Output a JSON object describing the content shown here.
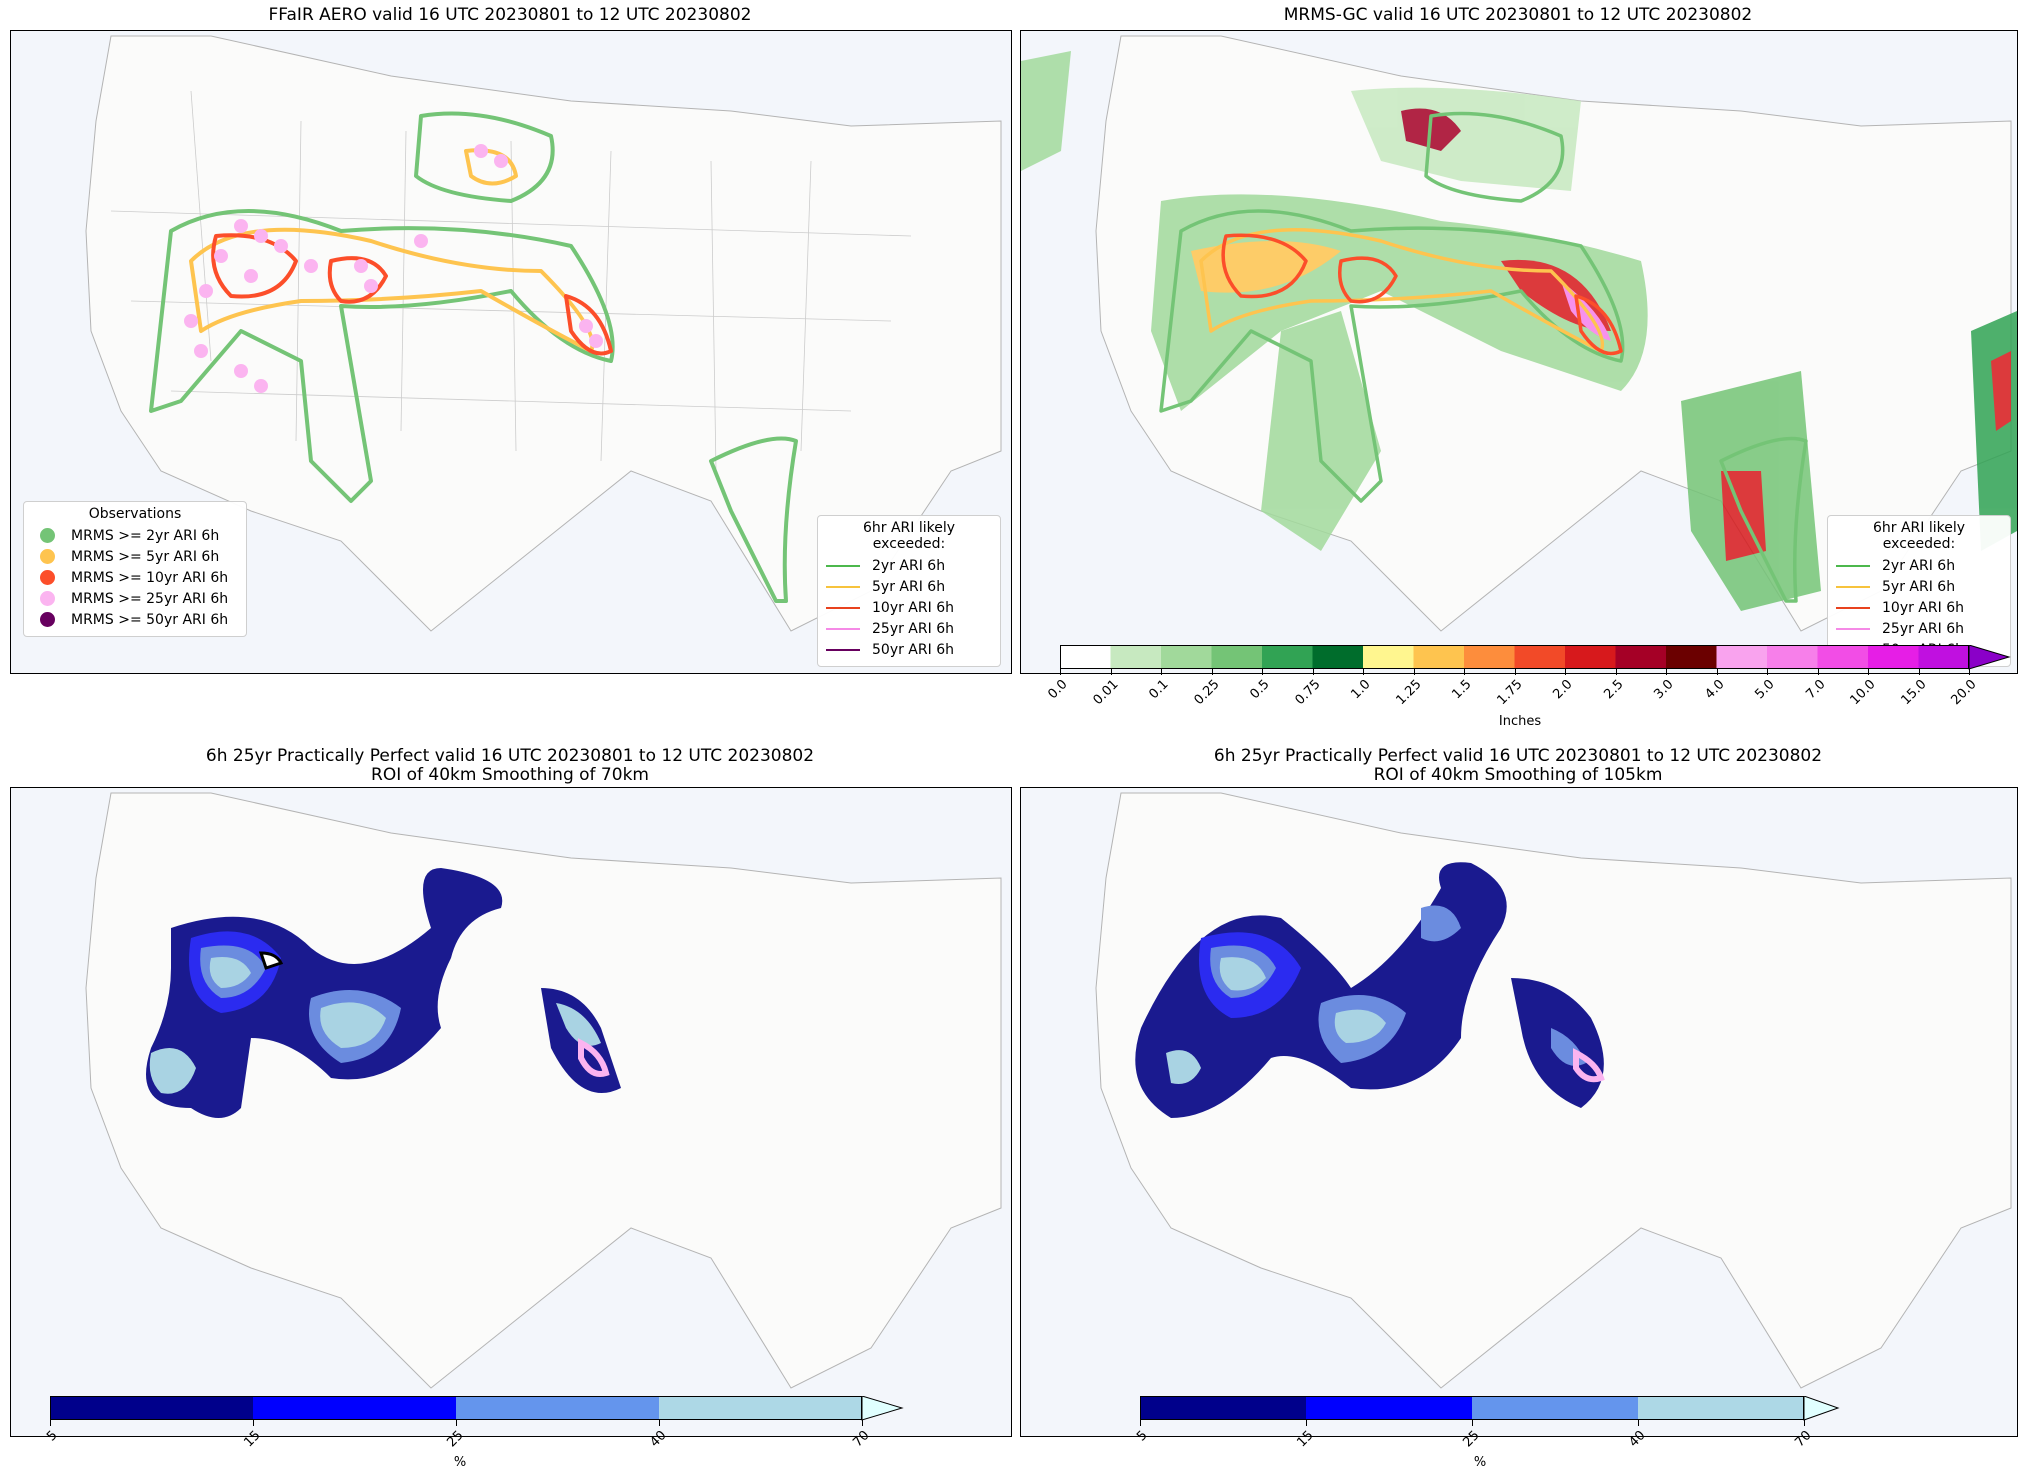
{
  "panels": [
    {
      "title_line1": "FFaIR AERO valid 16 UTC 20230801 to 12 UTC 20230802",
      "title_line2": ""
    },
    {
      "title_line1": "MRMS-GC valid 16 UTC 20230801 to 12 UTC 20230802",
      "title_line2": ""
    },
    {
      "title_line1": "6h 25yr Practically Perfect valid 16 UTC 20230801 to 12 UTC 20230802",
      "title_line2": "ROI of 40km Smoothing of 70km"
    },
    {
      "title_line1": "6h 25yr Practically Perfect valid 16 UTC 20230801 to 12 UTC 20230802",
      "title_line2": "ROI of 40km Smoothing of 105km"
    }
  ],
  "legend_observations": {
    "title": "Observations",
    "items": [
      {
        "label": "MRMS >= 2yr ARI 6h",
        "color": "#74c476"
      },
      {
        "label": "MRMS >= 5yr ARI 6h",
        "color": "#fec44f"
      },
      {
        "label": "MRMS >= 10yr ARI 6h",
        "color": "#fc4e2a"
      },
      {
        "label": "MRMS >= 25yr ARI 6h",
        "color": "#fbb4f0"
      },
      {
        "label": "MRMS >= 50yr ARI 6h",
        "color": "#67005f"
      }
    ]
  },
  "legend_ari": {
    "title": "6hr ARI likely exceeded:",
    "items": [
      {
        "label": "2yr ARI 6h",
        "color": "#4cb84c"
      },
      {
        "label": "5yr ARI 6h",
        "color": "#f7c33c"
      },
      {
        "label": "10yr ARI 6h",
        "color": "#e8421e"
      },
      {
        "label": "25yr ARI 6h",
        "color": "#f58ae6"
      },
      {
        "label": "50yr ARI 6h",
        "color": "#67005f"
      }
    ]
  },
  "precip_colorbar": {
    "label": "Inches",
    "ticks": [
      "0.0",
      "0.01",
      "0.1",
      "0.25",
      "0.5",
      "0.75",
      "1.0",
      "1.25",
      "1.5",
      "1.75",
      "2.0",
      "2.5",
      "3.0",
      "4.0",
      "5.0",
      "7.0",
      "10.0",
      "15.0",
      "20.0"
    ],
    "colors": [
      "#ffffff",
      "#c7e9c0",
      "#a1d99b",
      "#74c476",
      "#31a354",
      "#006d2c",
      "#fff68f",
      "#fec44f",
      "#fd8d3c",
      "#f24a28",
      "#d7191c",
      "#a50026",
      "#6b0000",
      "#f9a3ee",
      "#f77fea",
      "#f24de6",
      "#e61ee6",
      "#c010e0",
      "#8a00c8"
    ]
  },
  "prob_colorbar": {
    "label": "%",
    "ticks": [
      "5",
      "15",
      "25",
      "40",
      "70"
    ],
    "colors": [
      "#00008b",
      "#0000ff",
      "#6495ed",
      "#add8e6",
      "#e0ffff"
    ]
  }
}
